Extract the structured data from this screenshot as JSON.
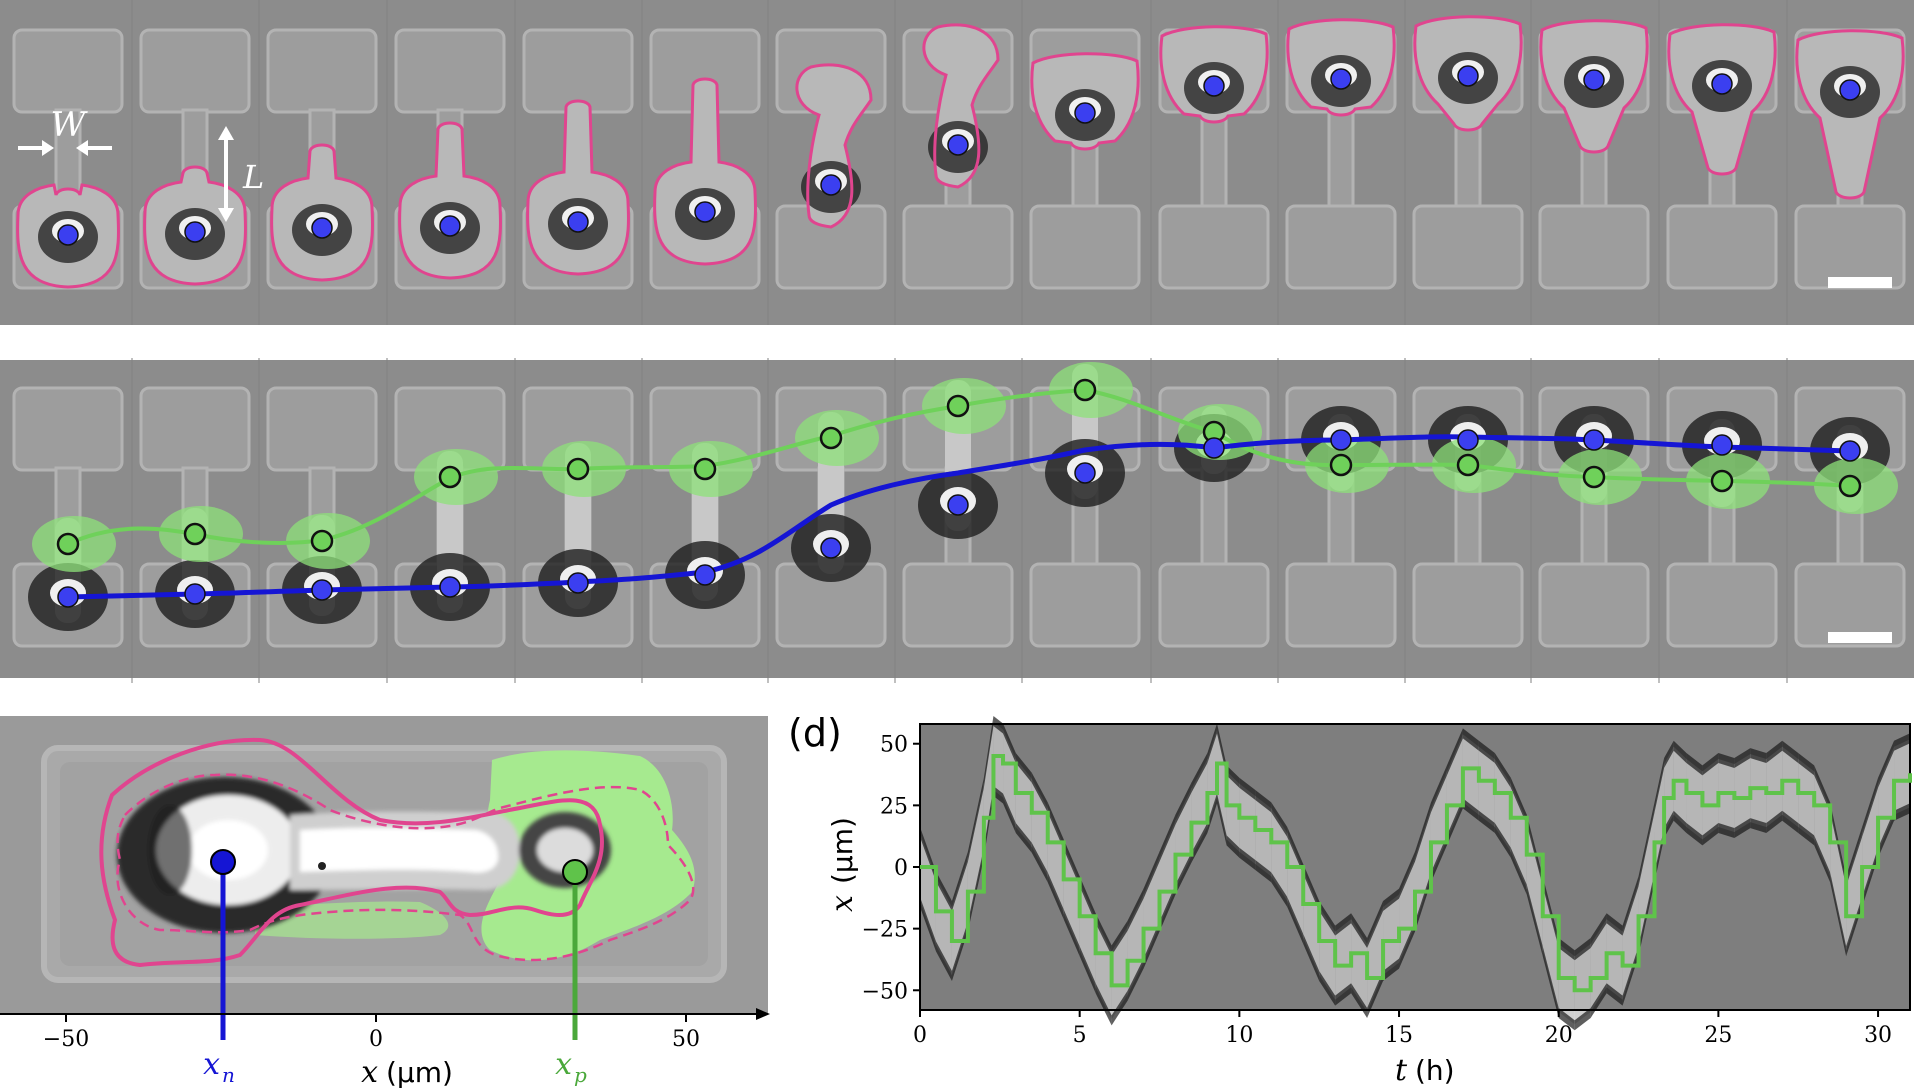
{
  "figure": {
    "panel_a": {
      "width_label": "W",
      "length_label": "L",
      "outline_color": "#e0458f",
      "nucleus_color": "#3b3ff0"
    },
    "panel_b": {
      "nucleus_track_color": "#1a1ad6",
      "protrusion_track_color": "#5fc34a"
    },
    "panel_c": {
      "x_ticks": [
        "−50",
        "0",
        "50"
      ],
      "x_axis_label_var": "x",
      "x_axis_label_unit": "(μm)",
      "nucleus_label_base": "x",
      "nucleus_label_sub": "n",
      "protrusion_label_base": "x",
      "protrusion_label_sub": "p",
      "nucleus_color": "#1a1ad6",
      "protrusion_color": "#4aa83a"
    },
    "panel_d": {
      "panel_letter": "(d)",
      "y_axis_var": "x",
      "y_axis_unit": "(μm)",
      "x_axis_var": "t",
      "x_axis_unit": "(h)",
      "line_color": "#5fc34a"
    }
  },
  "chart_data": {
    "type": "line",
    "title": "",
    "xlabel": "t (h)",
    "ylabel": "x (μm)",
    "xlim": [
      0,
      31
    ],
    "ylim": [
      -58,
      58
    ],
    "x_ticks": [
      "0",
      "5",
      "10",
      "15",
      "20",
      "25",
      "30"
    ],
    "y_ticks": [
      "50",
      "25",
      "0",
      "−25",
      "−50"
    ],
    "grid": false,
    "series": [
      {
        "x": [
          0,
          0.5,
          1.0,
          1.5,
          2.0,
          2.3,
          2.6,
          3.0,
          3.5,
          4.0,
          4.5,
          5.0,
          5.5,
          6.0,
          6.5,
          7.0,
          7.5,
          8.0,
          8.5,
          9.0,
          9.3,
          9.6,
          10.0,
          10.5,
          11.0,
          11.5,
          12.0,
          12.5,
          13.0,
          13.5,
          14.0,
          14.5,
          15.0,
          15.5,
          16.0,
          16.5,
          17.0,
          17.5,
          18.0,
          18.5,
          19.0,
          19.5,
          20.0,
          20.5,
          21.0,
          21.5,
          22.0,
          22.5,
          23.0,
          23.3,
          23.6,
          24.0,
          24.5,
          25.0,
          25.5,
          26.0,
          26.5,
          27.0,
          27.5,
          28.0,
          28.5,
          29.0,
          29.5,
          30.0,
          30.5,
          31.0
        ],
        "y": [
          0,
          -18,
          -30,
          -10,
          20,
          45,
          42,
          30,
          22,
          10,
          -5,
          -20,
          -35,
          -48,
          -38,
          -25,
          -10,
          5,
          18,
          30,
          42,
          25,
          20,
          15,
          10,
          0,
          -15,
          -30,
          -40,
          -35,
          -45,
          -30,
          -25,
          -10,
          10,
          25,
          40,
          35,
          30,
          20,
          5,
          -20,
          -45,
          -50,
          -45,
          -35,
          -40,
          -20,
          10,
          28,
          35,
          30,
          25,
          30,
          28,
          32,
          30,
          35,
          30,
          25,
          10,
          -20,
          0,
          20,
          35,
          38
        ]
      }
    ]
  }
}
